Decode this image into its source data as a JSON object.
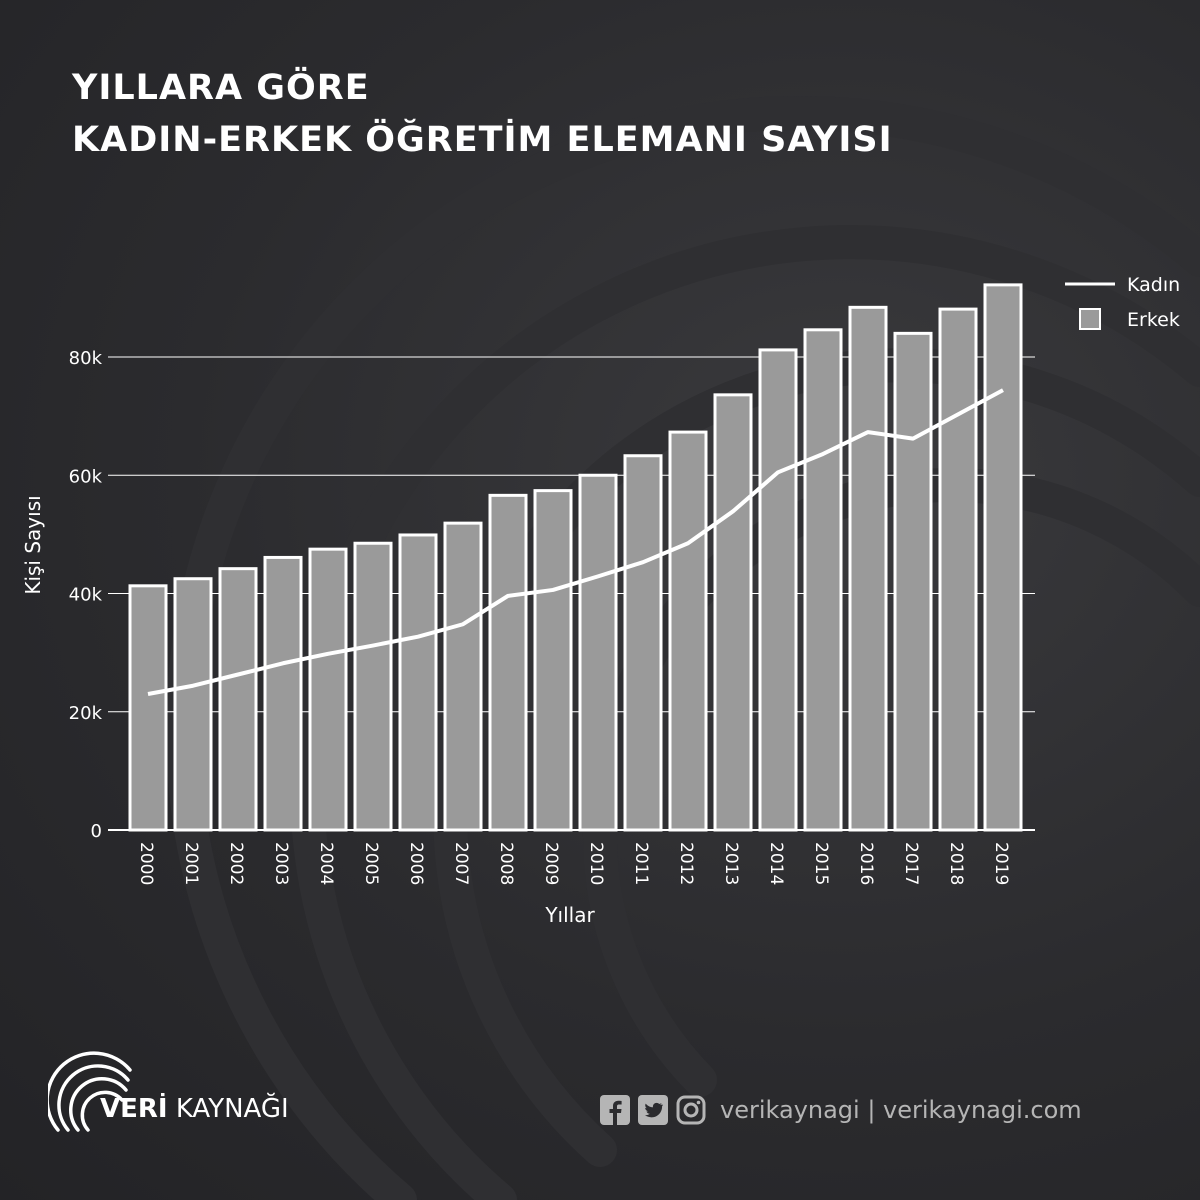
{
  "title_line1": "YILLARA GÖRE",
  "title_line2": "KADIN-ERKEK ÖĞRETİM ELEMANI SAYISI",
  "chart_data": {
    "type": "bar",
    "categories": [
      "2000",
      "2001",
      "2002",
      "2003",
      "2004",
      "2005",
      "2006",
      "2007",
      "2008",
      "2009",
      "2010",
      "2011",
      "2012",
      "2013",
      "2014",
      "2015",
      "2016",
      "2017",
      "2018",
      "2019"
    ],
    "series": [
      {
        "name": "Erkek",
        "type": "bar",
        "values": [
          41300,
          42500,
          44200,
          46100,
          47500,
          48500,
          49900,
          51900,
          56600,
          57400,
          60000,
          63300,
          67300,
          73600,
          81200,
          84600,
          88400,
          84000,
          88100,
          92200
        ]
      },
      {
        "name": "Kadın",
        "type": "line",
        "values": [
          23000,
          24400,
          26300,
          28200,
          29800,
          31200,
          32700,
          34800,
          39600,
          40600,
          42900,
          45300,
          48500,
          53900,
          60500,
          63600,
          67300,
          66200,
          70300,
          74400
        ]
      }
    ],
    "xlabel": "Yıllar",
    "ylabel": "Kişi Sayısı",
    "yticks": [
      "0",
      "20k",
      "40k",
      "60k",
      "80k"
    ],
    "ylim": [
      0,
      95000
    ],
    "grid": true,
    "legend": "top-right",
    "colors": {
      "bar_fill": "#9a9a9a",
      "bar_stroke": "#ffffff",
      "line": "#ffffff"
    }
  },
  "footer": {
    "brand_bold": "VERİ",
    "brand_rest": " KAYNAĞI",
    "social_text": "verikaynagi | verikaynagi.com",
    "icons": [
      "facebook-icon",
      "twitter-icon",
      "instagram-icon"
    ]
  }
}
